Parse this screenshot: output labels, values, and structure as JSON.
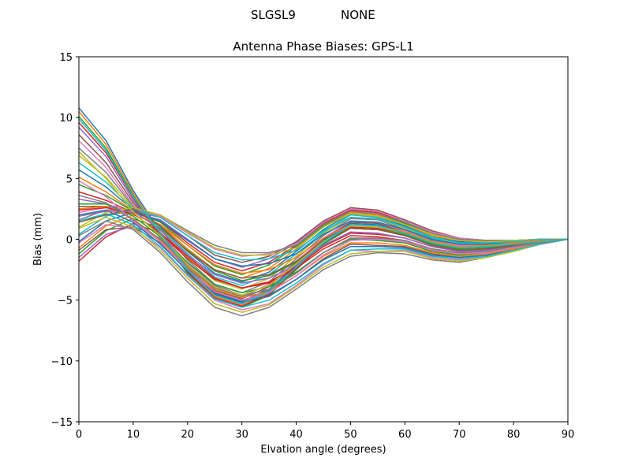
{
  "header": {
    "station": "SLGSL9",
    "radome": "NONE"
  },
  "chart_data": {
    "type": "line",
    "title": "Antenna Phase Biases: GPS-L1",
    "xlabel": "Elvation angle (degrees)",
    "ylabel": "Bias (mm)",
    "xlim": [
      0,
      90
    ],
    "ylim": [
      -15,
      15
    ],
    "xticks": [
      0,
      10,
      20,
      30,
      40,
      50,
      60,
      70,
      80,
      90
    ],
    "xtick_labels": [
      "0",
      "10",
      "20",
      "30",
      "40",
      "50",
      "60",
      "70",
      "80",
      "90"
    ],
    "yticks": [
      -15,
      -10,
      -5,
      0,
      5,
      10,
      15
    ],
    "ytick_labels": [
      "−15",
      "−10",
      "−5",
      "0",
      "5",
      "10",
      "15"
    ],
    "grid": false,
    "legend": "none",
    "colors": [
      "#1f77b4",
      "#ff7f0e",
      "#2ca02c",
      "#d62728",
      "#9467bd",
      "#8c564b",
      "#e377c2",
      "#7f7f7f",
      "#bcbd22",
      "#17becf"
    ],
    "x": [
      0,
      5,
      10,
      15,
      20,
      25,
      30,
      35,
      40,
      45,
      50,
      55,
      60,
      65,
      70,
      75,
      80,
      85,
      90
    ],
    "series": [
      {
        "values": [
          10.8,
          8.1,
          4.0,
          0.6,
          -2.3,
          -4.4,
          -5.1,
          -4.1,
          -2.1,
          -0.1,
          1.3,
          1.2,
          0.6,
          -0.2,
          -0.6,
          -0.6,
          -0.4,
          -0.2,
          0.0
        ]
      },
      {
        "values": [
          10.5,
          7.8,
          3.8,
          0.4,
          -2.6,
          -4.7,
          -5.4,
          -4.4,
          -2.3,
          -0.3,
          1.1,
          1.0,
          0.4,
          -0.4,
          -0.8,
          -0.7,
          -0.5,
          -0.2,
          0.0
        ]
      },
      {
        "values": [
          10.1,
          7.5,
          3.6,
          0.3,
          -2.8,
          -4.9,
          -5.6,
          -4.6,
          -2.5,
          -0.4,
          0.9,
          0.8,
          0.3,
          -0.5,
          -0.9,
          -0.8,
          -0.6,
          -0.3,
          0.0
        ]
      },
      {
        "values": [
          9.6,
          7.1,
          3.4,
          0.2,
          -2.7,
          -4.8,
          -5.5,
          -4.5,
          -2.4,
          -0.3,
          1.0,
          0.9,
          0.4,
          -0.4,
          -0.8,
          -0.7,
          -0.5,
          -0.2,
          0.0
        ]
      },
      {
        "values": [
          9.2,
          6.8,
          3.2,
          0.4,
          -2.4,
          -4.5,
          -5.2,
          -4.2,
          -2.2,
          -0.2,
          1.2,
          1.1,
          0.5,
          -0.3,
          -0.7,
          -0.6,
          -0.4,
          -0.2,
          0.0
        ]
      },
      {
        "values": [
          8.6,
          6.3,
          3.0,
          0.5,
          -2.2,
          -4.2,
          -4.9,
          -3.9,
          -1.9,
          0.0,
          1.4,
          1.3,
          0.6,
          -0.2,
          -0.6,
          -0.6,
          -0.4,
          -0.2,
          0.0
        ]
      },
      {
        "values": [
          8.1,
          5.9,
          2.8,
          0.6,
          -2.0,
          -4.0,
          -4.7,
          -3.7,
          -1.8,
          0.1,
          1.5,
          1.4,
          0.7,
          -0.2,
          -0.5,
          -0.5,
          -0.3,
          -0.1,
          0.0
        ]
      },
      {
        "values": [
          7.5,
          5.5,
          2.7,
          0.8,
          -1.7,
          -3.7,
          -4.4,
          -3.5,
          -1.6,
          0.3,
          1.7,
          1.6,
          0.8,
          -0.1,
          -0.4,
          -0.4,
          -0.3,
          -0.1,
          0.0
        ]
      },
      {
        "values": [
          6.9,
          5.1,
          2.6,
          0.9,
          -1.5,
          -3.4,
          -4.1,
          -3.2,
          -1.4,
          0.5,
          1.8,
          1.7,
          0.9,
          0.0,
          -0.3,
          -0.4,
          -0.2,
          -0.1,
          0.0
        ]
      },
      {
        "values": [
          6.3,
          4.7,
          2.5,
          1.0,
          -1.2,
          -3.1,
          -3.8,
          -2.9,
          -1.2,
          0.6,
          2.0,
          1.8,
          1.0,
          0.1,
          -0.2,
          -0.3,
          -0.2,
          -0.1,
          0.0
        ]
      },
      {
        "values": [
          5.7,
          4.3,
          2.4,
          1.1,
          -1.0,
          -2.8,
          -3.5,
          -2.7,
          -1.0,
          0.8,
          2.1,
          1.9,
          1.1,
          0.2,
          -0.2,
          -0.3,
          -0.2,
          -0.1,
          0.0
        ]
      },
      {
        "values": [
          5.1,
          3.9,
          2.3,
          1.2,
          -0.8,
          -2.5,
          -3.2,
          -2.4,
          -0.8,
          1.0,
          2.2,
          2.0,
          1.2,
          0.3,
          -0.1,
          -0.2,
          -0.2,
          -0.1,
          0.0
        ]
      },
      {
        "values": [
          4.5,
          3.6,
          2.3,
          1.4,
          -0.5,
          -2.2,
          -2.9,
          -2.1,
          -0.6,
          1.1,
          2.3,
          2.1,
          1.3,
          0.4,
          0.0,
          -0.2,
          -0.1,
          0.0,
          0.0
        ]
      },
      {
        "values": [
          3.9,
          3.2,
          2.2,
          1.5,
          -0.3,
          -1.9,
          -2.6,
          -1.9,
          -0.5,
          1.3,
          2.4,
          2.2,
          1.4,
          0.5,
          0.0,
          -0.1,
          -0.1,
          0.0,
          0.0
        ]
      },
      {
        "values": [
          3.3,
          2.9,
          2.2,
          1.6,
          0.0,
          -1.6,
          -2.3,
          -1.6,
          -0.3,
          1.4,
          2.5,
          2.3,
          1.5,
          0.6,
          0.1,
          -0.1,
          -0.1,
          0.0,
          0.0
        ]
      },
      {
        "values": [
          2.7,
          2.7,
          2.3,
          1.8,
          0.3,
          -1.3,
          -1.9,
          -1.4,
          -0.2,
          1.5,
          2.6,
          2.4,
          1.6,
          0.7,
          0.1,
          -0.1,
          -0.1,
          0.0,
          0.0
        ]
      },
      {
        "values": [
          2.2,
          2.6,
          2.4,
          1.9,
          0.5,
          -0.8,
          -1.4,
          -1.2,
          -0.4,
          1.4,
          2.5,
          2.3,
          1.5,
          0.6,
          0.1,
          -0.1,
          -0.1,
          0.0,
          0.0
        ]
      },
      {
        "values": [
          1.6,
          2.4,
          2.5,
          2.0,
          0.7,
          -0.5,
          -1.1,
          -1.1,
          -0.5,
          1.2,
          2.3,
          2.1,
          1.4,
          0.5,
          0.0,
          -0.1,
          -0.1,
          0.0,
          0.0
        ]
      },
      {
        "values": [
          1.0,
          2.2,
          2.6,
          2.0,
          0.6,
          -0.7,
          -1.3,
          -1.3,
          -0.7,
          1.0,
          2.1,
          1.9,
          1.2,
          0.4,
          -0.1,
          -0.2,
          -0.1,
          0.0,
          0.0
        ]
      },
      {
        "values": [
          0.4,
          1.9,
          2.4,
          1.8,
          0.3,
          -1.1,
          -1.7,
          -1.6,
          -0.9,
          0.7,
          1.8,
          1.7,
          1.0,
          0.2,
          -0.3,
          -0.3,
          -0.2,
          0.0,
          0.0
        ]
      },
      {
        "values": [
          -0.2,
          1.5,
          2.2,
          1.5,
          -0.1,
          -1.6,
          -2.2,
          -2.0,
          -1.2,
          0.4,
          1.5,
          1.4,
          0.8,
          0.0,
          -0.4,
          -0.4,
          -0.3,
          -0.1,
          0.0
        ]
      },
      {
        "values": [
          -0.7,
          1.1,
          2.0,
          1.2,
          -0.5,
          -2.1,
          -2.8,
          -2.5,
          -1.5,
          0.1,
          1.2,
          1.1,
          0.6,
          -0.2,
          -0.6,
          -0.5,
          -0.3,
          -0.1,
          0.0
        ]
      },
      {
        "values": [
          -1.2,
          0.7,
          1.7,
          0.9,
          -0.9,
          -2.6,
          -3.4,
          -3.0,
          -1.9,
          -0.2,
          0.9,
          0.8,
          0.4,
          -0.4,
          -0.8,
          -0.7,
          -0.4,
          -0.2,
          0.0
        ]
      },
      {
        "values": [
          -1.8,
          0.2,
          1.3,
          0.5,
          -1.4,
          -3.2,
          -4.0,
          -3.5,
          -2.3,
          -0.6,
          0.5,
          0.4,
          0.1,
          -0.6,
          -1.0,
          -0.9,
          -0.5,
          -0.2,
          0.0
        ]
      },
      {
        "values": [
          -1.5,
          0.4,
          1.1,
          0.1,
          -1.9,
          -3.8,
          -4.6,
          -4.1,
          -2.8,
          -1.1,
          0.1,
          0.0,
          -0.2,
          -0.9,
          -1.2,
          -1.1,
          -0.7,
          -0.3,
          0.0
        ]
      },
      {
        "values": [
          -0.9,
          0.8,
          1.0,
          -0.3,
          -2.4,
          -4.4,
          -5.2,
          -4.7,
          -3.3,
          -1.6,
          -0.4,
          -0.5,
          -0.6,
          -1.2,
          -1.5,
          -1.3,
          -0.8,
          -0.3,
          0.0
        ]
      },
      {
        "values": [
          -0.3,
          1.2,
          0.9,
          -0.7,
          -3.0,
          -5.0,
          -5.8,
          -5.3,
          -3.8,
          -2.1,
          -0.9,
          -1.0,
          -0.9,
          -1.5,
          -1.7,
          -1.4,
          -0.9,
          -0.4,
          0.0
        ]
      },
      {
        "values": [
          0.3,
          1.5,
          0.8,
          -1.1,
          -3.5,
          -5.6,
          -6.3,
          -5.6,
          -4.1,
          -2.5,
          -1.4,
          -1.1,
          -1.2,
          -1.7,
          -1.9,
          -1.5,
          -1.0,
          -0.4,
          0.0
        ]
      },
      {
        "values": [
          0.9,
          1.8,
          1.0,
          -0.9,
          -3.2,
          -5.3,
          -6.0,
          -5.4,
          -3.9,
          -2.3,
          -1.2,
          -1.0,
          -1.0,
          -1.6,
          -1.8,
          -1.5,
          -1.0,
          -0.4,
          0.0
        ]
      },
      {
        "values": [
          1.5,
          2.1,
          1.2,
          -0.6,
          -2.9,
          -4.9,
          -5.6,
          -5.0,
          -3.6,
          -2.0,
          -0.9,
          -0.8,
          -0.8,
          -1.4,
          -1.6,
          -1.4,
          -0.9,
          -0.4,
          0.0
        ]
      },
      {
        "values": [
          2.0,
          2.4,
          1.4,
          -0.4,
          -2.6,
          -4.5,
          -5.2,
          -4.6,
          -3.3,
          -1.7,
          -0.6,
          -0.6,
          -0.7,
          -1.3,
          -1.5,
          -1.3,
          -0.8,
          -0.3,
          0.0
        ]
      },
      {
        "values": [
          2.5,
          2.7,
          1.7,
          -0.1,
          -2.3,
          -4.1,
          -4.8,
          -4.3,
          -3.0,
          -1.4,
          -0.3,
          -0.3,
          -0.5,
          -1.1,
          -1.4,
          -1.2,
          -0.8,
          -0.3,
          0.0
        ]
      },
      {
        "values": [
          2.9,
          2.9,
          1.9,
          0.2,
          -1.9,
          -3.7,
          -4.4,
          -3.9,
          -2.7,
          -1.1,
          0.0,
          -0.1,
          -0.3,
          -1.0,
          -1.3,
          -1.1,
          -0.7,
          -0.3,
          0.0
        ]
      },
      {
        "values": [
          2.4,
          2.6,
          2.1,
          0.5,
          -1.6,
          -3.3,
          -4.0,
          -3.6,
          -2.4,
          -0.8,
          0.3,
          0.2,
          -0.1,
          -0.8,
          -1.1,
          -1.0,
          -0.6,
          -0.2,
          0.0
        ]
      },
      {
        "values": [
          1.9,
          2.3,
          2.3,
          0.8,
          -1.3,
          -2.9,
          -3.6,
          -3.2,
          -2.1,
          -0.5,
          0.6,
          0.5,
          0.1,
          -0.6,
          -1.0,
          -0.9,
          -0.6,
          -0.2,
          0.0
        ]
      },
      {
        "values": [
          1.4,
          2.0,
          2.5,
          1.1,
          -1.0,
          -2.5,
          -3.2,
          -2.9,
          -1.8,
          -0.2,
          0.9,
          0.8,
          0.3,
          -0.5,
          -0.9,
          -0.8,
          -0.5,
          -0.2,
          0.0
        ]
      },
      {
        "values": [
          4.8,
          3.5,
          1.5,
          -0.2,
          -2.5,
          -4.3,
          -5.0,
          -4.4,
          -3.0,
          -1.3,
          -0.1,
          0.0,
          -0.2,
          -0.9,
          -1.2,
          -1.1,
          -0.7,
          -0.3,
          0.0
        ]
      },
      {
        "values": [
          3.6,
          3.0,
          1.6,
          0.0,
          -2.2,
          -4.0,
          -4.7,
          -4.1,
          -2.8,
          -1.1,
          0.1,
          0.1,
          -0.1,
          -0.8,
          -1.1,
          -1.0,
          -0.6,
          -0.3,
          0.0
        ]
      },
      {
        "values": [
          7.2,
          5.0,
          2.2,
          0.3,
          -2.1,
          -3.9,
          -4.6,
          -3.8,
          -2.0,
          -0.2,
          1.1,
          1.0,
          0.5,
          -0.3,
          -0.7,
          -0.6,
          -0.4,
          -0.2,
          0.0
        ]
      },
      {
        "values": [
          9.9,
          7.3,
          3.5,
          0.5,
          -2.5,
          -4.6,
          -5.3,
          -4.3,
          -2.3,
          -0.3,
          1.2,
          1.1,
          0.5,
          -0.3,
          -0.7,
          -0.6,
          -0.4,
          -0.2,
          0.0
        ]
      }
    ]
  }
}
